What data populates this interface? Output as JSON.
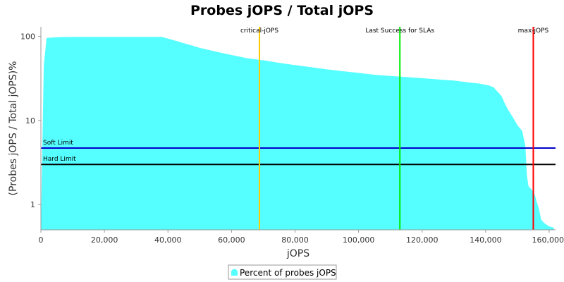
{
  "chart_data": {
    "type": "area",
    "title": "Probes jOPS / Total jOPS",
    "xlabel": "jOPS",
    "ylabel": "(Probes jOPS / Total jOPS)%",
    "xlim": [
      0,
      162000
    ],
    "ylim": [
      0.5,
      130
    ],
    "y_scale": "log",
    "grid": false,
    "legend_position": "bottom-center",
    "x_ticks": [
      {
        "value": 0,
        "label": "0"
      },
      {
        "value": 20000,
        "label": "20,000"
      },
      {
        "value": 40000,
        "label": "40,000"
      },
      {
        "value": 60000,
        "label": "60,000"
      },
      {
        "value": 80000,
        "label": "80,000"
      },
      {
        "value": 100000,
        "label": "100,000"
      },
      {
        "value": 120000,
        "label": "120,000"
      },
      {
        "value": 140000,
        "label": "140,000"
      },
      {
        "value": 160000,
        "label": "160,000"
      }
    ],
    "y_ticks": [
      {
        "value": 1,
        "label": "1"
      },
      {
        "value": 10,
        "label": "10"
      },
      {
        "value": 100,
        "label": "100"
      }
    ],
    "series": [
      {
        "name": "Percent of probes jOPS",
        "color": "#55ffff",
        "x": [
          0,
          900,
          1800,
          6000,
          10000,
          20000,
          30000,
          38000,
          40000,
          45000,
          50000,
          55000,
          60000,
          65000,
          70000,
          75000,
          80000,
          85000,
          90000,
          95000,
          100000,
          105000,
          110000,
          115000,
          120000,
          125000,
          130000,
          135000,
          138000,
          140000,
          141000,
          142500,
          143500,
          145000,
          146000,
          147000,
          148500,
          150000,
          151500,
          152500,
          153000,
          153500,
          154500,
          155500,
          156000,
          156800,
          157500,
          158500,
          160000,
          161500
        ],
        "y": [
          0.5,
          45,
          96,
          98,
          98.5,
          98.5,
          98.5,
          98.5,
          94,
          83,
          73,
          66,
          60,
          55,
          52,
          48.5,
          45.5,
          43,
          40.5,
          38.5,
          36.8,
          35,
          33.8,
          32.8,
          31.8,
          30.8,
          29.8,
          28.2,
          27.5,
          26.5,
          26,
          24.8,
          22.5,
          19.5,
          16,
          13.5,
          11,
          8.8,
          7.5,
          5,
          2.2,
          1.65,
          1.5,
          1.3,
          1.1,
          0.88,
          0.66,
          0.6,
          0.55,
          0.53
        ]
      }
    ],
    "horizontal_lines": [
      {
        "name": "Soft Limit",
        "value": 4.7,
        "color": "#0000cc"
      },
      {
        "name": "Hard Limit",
        "value": 3.0,
        "color": "#000000"
      }
    ],
    "vertical_lines": [
      {
        "name": "critical-jOPS",
        "value": 68800,
        "color": "#ffcc00"
      },
      {
        "name": "Last Success for SLAs",
        "value": 113000,
        "color": "#00ee00"
      },
      {
        "name": "max-jOPS",
        "value": 155000,
        "color": "#ff0000"
      }
    ]
  }
}
